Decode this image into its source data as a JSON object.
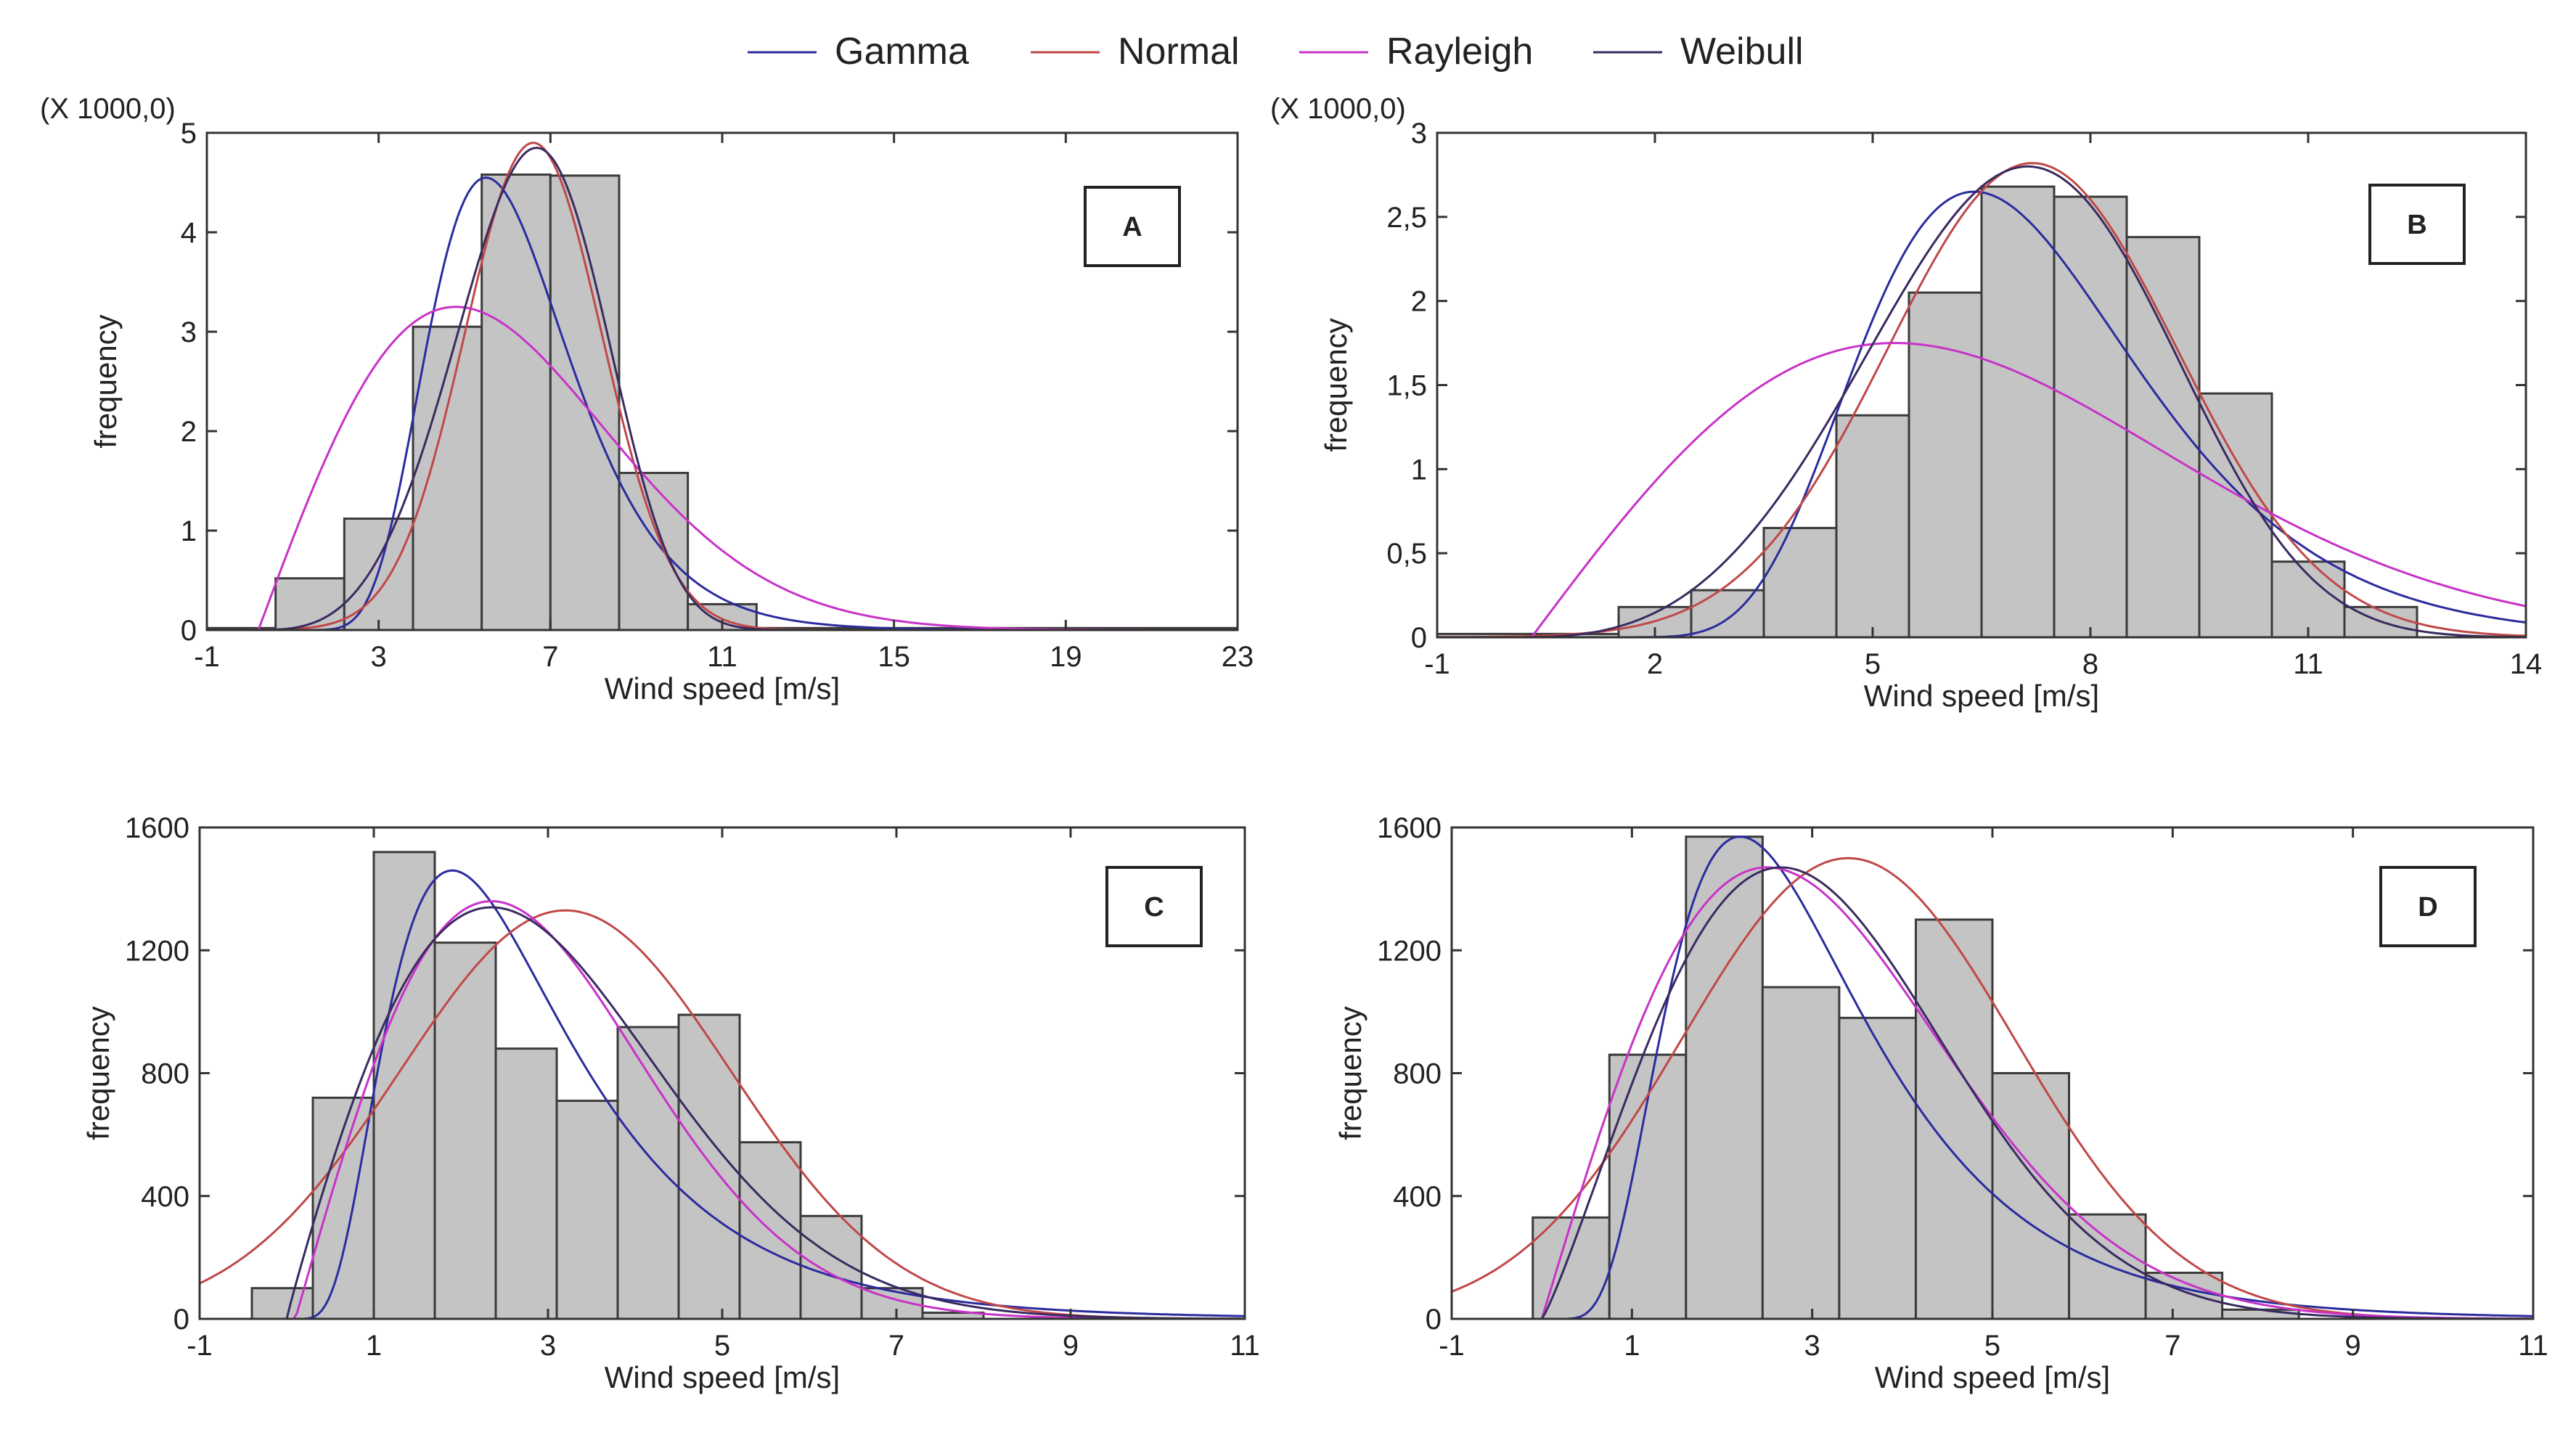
{
  "legend": [
    {
      "name": "Gamma",
      "color": "#2b2b9e"
    },
    {
      "name": "Normal",
      "color": "#c04848"
    },
    {
      "name": "Rayleigh",
      "color": "#c832c8"
    },
    {
      "name": "Weibull",
      "color": "#3a2a60"
    }
  ],
  "chart_data": [
    {
      "type": "bar",
      "panel": "A",
      "xlabel": "Wind speed [m/s]",
      "ylabel": "frequency",
      "multiplier": "(X 1000,0)",
      "xlim": [
        -1,
        23
      ],
      "ylim": [
        0,
        5
      ],
      "xticks": [
        -1,
        3,
        7,
        11,
        15,
        19,
        23
      ],
      "yticks": [
        0,
        1,
        2,
        3,
        4,
        5
      ],
      "ytick_labels": [
        "0",
        "1",
        "2",
        "3",
        "4",
        "5"
      ],
      "bins": [
        {
          "x0": -1,
          "x1": 0.6,
          "value": 0.02
        },
        {
          "x0": 0.6,
          "x1": 2.2,
          "value": 0.52
        },
        {
          "x0": 2.2,
          "x1": 3.8,
          "value": 1.12
        },
        {
          "x0": 3.8,
          "x1": 5.4,
          "value": 3.05
        },
        {
          "x0": 5.4,
          "x1": 7.0,
          "value": 4.58
        },
        {
          "x0": 7.0,
          "x1": 8.6,
          "value": 4.57
        },
        {
          "x0": 8.6,
          "x1": 10.2,
          "value": 1.58
        },
        {
          "x0": 10.2,
          "x1": 11.8,
          "value": 0.26
        },
        {
          "x0": 11.8,
          "x1": 23,
          "value": 0.02
        }
      ],
      "curves": {
        "Gamma": {
          "shape": "lognormal",
          "mode": 5.5,
          "peak": 4.55,
          "sigma": 0.3
        },
        "Normal": {
          "shape": "normal",
          "mean": 6.6,
          "sd": 1.6,
          "peak": 4.9
        },
        "Rayleigh": {
          "shape": "rayleigh",
          "offset": 0.2,
          "sigma": 4.6,
          "peak": 3.25
        },
        "Weibull": {
          "shape": "weibull",
          "k": 4.3,
          "lambda": 7.1,
          "peak": 4.85
        }
      }
    },
    {
      "type": "bar",
      "panel": "B",
      "xlabel": "Wind speed [m/s]",
      "ylabel": "frequency",
      "multiplier": "(X 1000,0)",
      "xlim": [
        -1,
        14
      ],
      "ylim": [
        0,
        3
      ],
      "xticks": [
        -1,
        2,
        5,
        8,
        11,
        14
      ],
      "yticks": [
        0,
        0.5,
        1,
        1.5,
        2,
        2.5,
        3
      ],
      "ytick_labels": [
        "0",
        "0,5",
        "1",
        "1,5",
        "2",
        "2,5",
        "3"
      ],
      "bins": [
        {
          "x0": -1,
          "x1": 1.5,
          "value": 0.02
        },
        {
          "x0": 1.5,
          "x1": 2.5,
          "value": 0.18
        },
        {
          "x0": 2.5,
          "x1": 3.5,
          "value": 0.28
        },
        {
          "x0": 3.5,
          "x1": 4.5,
          "value": 0.65
        },
        {
          "x0": 4.5,
          "x1": 5.5,
          "value": 1.32
        },
        {
          "x0": 5.5,
          "x1": 6.5,
          "value": 2.05
        },
        {
          "x0": 6.5,
          "x1": 7.5,
          "value": 2.68
        },
        {
          "x0": 7.5,
          "x1": 8.5,
          "value": 2.62
        },
        {
          "x0": 8.5,
          "x1": 9.5,
          "value": 2.38
        },
        {
          "x0": 9.5,
          "x1": 10.5,
          "value": 1.45
        },
        {
          "x0": 10.5,
          "x1": 11.5,
          "value": 0.45
        },
        {
          "x0": 11.5,
          "x1": 12.5,
          "value": 0.18
        }
      ],
      "curves": {
        "Gamma": {
          "shape": "lognormal",
          "mode": 6.4,
          "peak": 2.65,
          "sigma": 0.3
        },
        "Normal": {
          "shape": "normal",
          "mean": 7.2,
          "sd": 2.0,
          "peak": 2.82
        },
        "Rayleigh": {
          "shape": "rayleigh",
          "offset": 0.3,
          "sigma": 5.0,
          "peak": 1.75
        },
        "Weibull": {
          "shape": "weibull",
          "k": 3.9,
          "lambda": 7.7,
          "peak": 2.8
        }
      }
    },
    {
      "type": "bar",
      "panel": "C",
      "xlabel": "Wind speed [m/s]",
      "ylabel": "frequency",
      "multiplier": "",
      "xlim": [
        -1,
        11
      ],
      "ylim": [
        0,
        1600
      ],
      "xticks": [
        -1,
        1,
        3,
        5,
        7,
        9,
        11
      ],
      "yticks": [
        0,
        400,
        800,
        1200,
        1600
      ],
      "ytick_labels": [
        "0",
        "400",
        "800",
        "1200",
        "1600"
      ],
      "bins": [
        {
          "x0": -0.4,
          "x1": 0.3,
          "value": 100
        },
        {
          "x0": 0.3,
          "x1": 1.0,
          "value": 720
        },
        {
          "x0": 1.0,
          "x1": 1.7,
          "value": 1520
        },
        {
          "x0": 1.7,
          "x1": 2.4,
          "value": 1225
        },
        {
          "x0": 2.4,
          "x1": 3.1,
          "value": 880
        },
        {
          "x0": 3.1,
          "x1": 3.8,
          "value": 710
        },
        {
          "x0": 3.8,
          "x1": 4.5,
          "value": 950
        },
        {
          "x0": 4.5,
          "x1": 5.2,
          "value": 990
        },
        {
          "x0": 5.2,
          "x1": 5.9,
          "value": 575
        },
        {
          "x0": 5.9,
          "x1": 6.6,
          "value": 335
        },
        {
          "x0": 6.6,
          "x1": 7.3,
          "value": 100
        },
        {
          "x0": 7.3,
          "x1": 8.0,
          "value": 20
        }
      ],
      "curves": {
        "Gamma": {
          "shape": "lognormal",
          "mode": 1.9,
          "peak": 1460,
          "sigma": 0.55
        },
        "Normal": {
          "shape": "normal",
          "mean": 3.2,
          "sd": 1.9,
          "peak": 1330
        },
        "Rayleigh": {
          "shape": "rayleigh",
          "offset": 0.1,
          "sigma": 2.25,
          "peak": 1360
        },
        "Weibull": {
          "shape": "weibull",
          "k": 1.95,
          "lambda": 3.4,
          "peak": 1340
        }
      }
    },
    {
      "type": "bar",
      "panel": "D",
      "xlabel": "Wind speed [m/s]",
      "ylabel": "frequency",
      "multiplier": "",
      "xlim": [
        -1,
        11
      ],
      "ylim": [
        0,
        1600
      ],
      "xticks": [
        -1,
        1,
        3,
        5,
        7,
        9,
        11
      ],
      "yticks": [
        0,
        400,
        800,
        1200,
        1600
      ],
      "ytick_labels": [
        "0",
        "400",
        "800",
        "1200",
        "1600"
      ],
      "bins": [
        {
          "x0": -0.1,
          "x1": 0.75,
          "value": 330
        },
        {
          "x0": 0.75,
          "x1": 1.6,
          "value": 860
        },
        {
          "x0": 1.6,
          "x1": 2.45,
          "value": 1570
        },
        {
          "x0": 2.45,
          "x1": 3.3,
          "value": 1080
        },
        {
          "x0": 3.3,
          "x1": 4.15,
          "value": 980
        },
        {
          "x0": 4.15,
          "x1": 5.0,
          "value": 1300
        },
        {
          "x0": 5.0,
          "x1": 5.85,
          "value": 800
        },
        {
          "x0": 5.85,
          "x1": 6.7,
          "value": 340
        },
        {
          "x0": 6.7,
          "x1": 7.55,
          "value": 150
        },
        {
          "x0": 7.55,
          "x1": 8.4,
          "value": 30
        }
      ],
      "curves": {
        "Gamma": {
          "shape": "lognormal",
          "mode": 2.2,
          "peak": 1570,
          "sigma": 0.5
        },
        "Normal": {
          "shape": "normal",
          "mean": 3.4,
          "sd": 1.85,
          "peak": 1500
        },
        "Rayleigh": {
          "shape": "rayleigh",
          "offset": 0.0,
          "sigma": 2.5,
          "peak": 1470
        },
        "Weibull": {
          "shape": "weibull",
          "k": 2.15,
          "lambda": 3.55,
          "peak": 1470
        }
      }
    }
  ]
}
